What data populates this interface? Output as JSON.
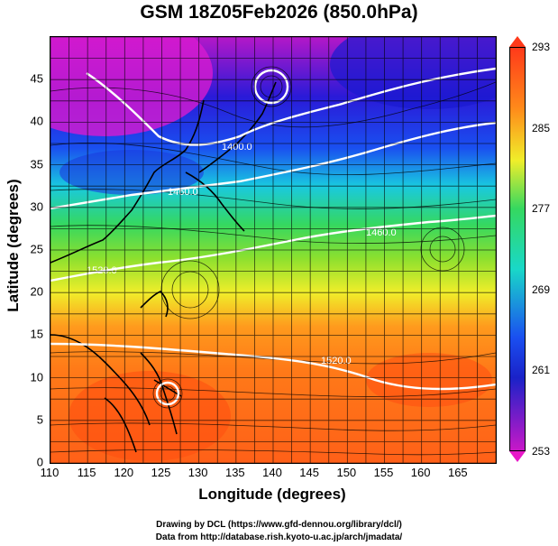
{
  "title": "GSM 18Z05Feb2026 (850.0hPa)",
  "x_axis": {
    "label": "Longitude (degrees)",
    "ticks": [
      "110",
      "115",
      "120",
      "125",
      "130",
      "135",
      "140",
      "145",
      "150",
      "155",
      "160",
      "165"
    ]
  },
  "y_axis": {
    "label": "Latitude  (degrees)",
    "ticks": [
      "0",
      "5",
      "10",
      "15",
      "20",
      "25",
      "30",
      "35",
      "40",
      "45"
    ]
  },
  "colorbar": {
    "ticks": [
      "293",
      "285",
      "277",
      "269",
      "261",
      "253"
    ],
    "min": 253,
    "max": 293
  },
  "contour_labels": [
    "1400.0",
    "1520.0",
    "1460.0",
    "1460.0",
    "1520.0"
  ],
  "credits": {
    "line1": "Drawing by DCL (https://www.gfd-dennou.org/library/dcl/)",
    "line2": "Data from http://database.rish.kyoto-u.ac.jp/arch/jmadata/"
  },
  "colors": {
    "cold": "#c818c8",
    "cool": "#1a4ff0",
    "mild": "#35d860",
    "warm": "#f0ee2a",
    "hot": "#ff6018"
  }
}
